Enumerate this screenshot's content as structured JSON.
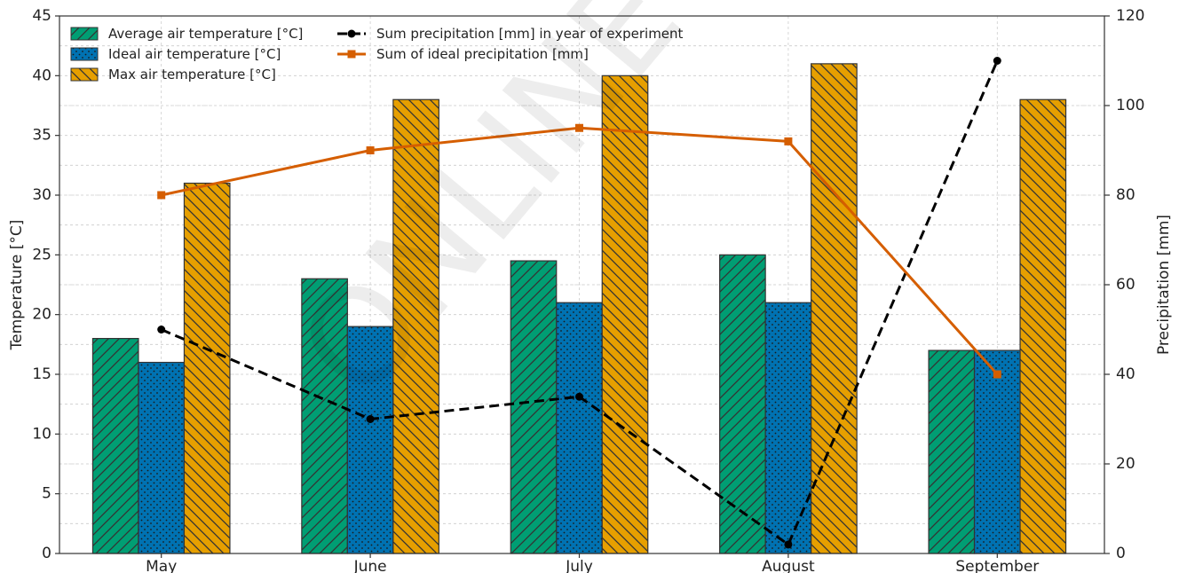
{
  "chart_data": {
    "type": "bar",
    "categories": [
      "May",
      "June",
      "July",
      "August",
      "September"
    ],
    "series": [
      {
        "name": "Average air temperature [°C]",
        "kind": "bar",
        "axis": "left",
        "color": "#009E73",
        "hatch": "diag-up",
        "values": [
          18,
          23,
          24.5,
          25,
          17
        ]
      },
      {
        "name": "Ideal air temperature [°C]",
        "kind": "bar",
        "axis": "left",
        "color": "#0072B2",
        "hatch": "dots",
        "values": [
          16,
          19,
          21,
          21,
          17
        ]
      },
      {
        "name": "Max air temperature [°C]",
        "kind": "bar",
        "axis": "left",
        "color": "#E69F00",
        "hatch": "diag-down",
        "values": [
          31,
          38,
          40,
          41,
          38
        ]
      },
      {
        "name": "Sum precipitation [mm] in year of experiment",
        "kind": "line",
        "axis": "right",
        "color": "#000000",
        "dash": true,
        "marker": "circle",
        "values": [
          50,
          30,
          35,
          2,
          110
        ]
      },
      {
        "name": "Sum of ideal precipitation [mm]",
        "kind": "line",
        "axis": "right",
        "color": "#D55E00",
        "dash": false,
        "marker": "square",
        "values": [
          80,
          90,
          95,
          92,
          40
        ]
      }
    ],
    "ylabel": "Temperature [°C]",
    "y2label": "Precipitation [mm]",
    "ylim": [
      0,
      45
    ],
    "y2lim": [
      0,
      120
    ],
    "yticks": [
      0,
      5,
      10,
      15,
      20,
      25,
      30,
      35,
      40,
      45
    ],
    "y2ticks": [
      0,
      20,
      40,
      60,
      80,
      100,
      120
    ],
    "grid": true,
    "legend_position": "top-left"
  },
  "watermark": "ONLINE"
}
